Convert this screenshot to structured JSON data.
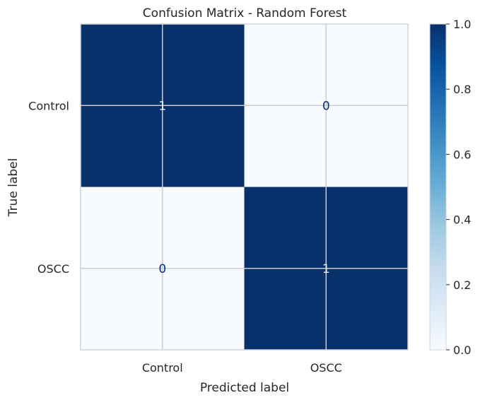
{
  "chart_data": {
    "type": "heatmap",
    "title": "Confusion Matrix - Random Forest",
    "xlabel": "Predicted label",
    "ylabel": "True label",
    "x_categories": [
      "Control",
      "OSCC"
    ],
    "y_categories": [
      "Control",
      "OSCC"
    ],
    "values": [
      [
        1,
        0
      ],
      [
        0,
        1
      ]
    ],
    "cell_labels": [
      [
        "1",
        "0"
      ],
      [
        "0",
        "1"
      ]
    ],
    "colormap": "Blues",
    "vmin": 0,
    "vmax": 1,
    "colorbar": {
      "ticks": [
        0.0,
        0.2,
        0.4,
        0.6,
        0.8,
        1.0
      ],
      "tick_labels": [
        "0.0",
        "0.2",
        "0.4",
        "0.6",
        "0.8",
        "1.0"
      ]
    },
    "grid": true,
    "colors": {
      "low": "#f7fbff",
      "high": "#08306b",
      "grid": "#c8ccd2",
      "text_on_dark": "#f7fbff",
      "text_on_light": "#08306b"
    }
  }
}
